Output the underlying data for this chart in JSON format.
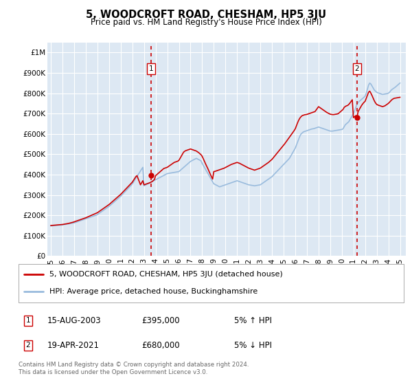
{
  "title": "5, WOODCROFT ROAD, CHESHAM, HP5 3JU",
  "subtitle": "Price paid vs. HM Land Registry's House Price Index (HPI)",
  "legend_line1": "5, WOODCROFT ROAD, CHESHAM, HP5 3JU (detached house)",
  "legend_line2": "HPI: Average price, detached house, Buckinghamshire",
  "transaction1_date": "15-AUG-2003",
  "transaction1_price": 395000,
  "transaction1_note": "5% ↑ HPI",
  "transaction2_date": "19-APR-2021",
  "transaction2_price": 680000,
  "transaction2_note": "5% ↓ HPI",
  "footer": "Contains HM Land Registry data © Crown copyright and database right 2024.\nThis data is licensed under the Open Government Licence v3.0.",
  "ylim": [
    0,
    1050000
  ],
  "yticks": [
    0,
    100000,
    200000,
    300000,
    400000,
    500000,
    600000,
    700000,
    800000,
    900000,
    1000000
  ],
  "ytick_labels": [
    "£0",
    "£100K",
    "£200K",
    "£300K",
    "£400K",
    "£500K",
    "£600K",
    "£700K",
    "£800K",
    "£900K",
    "£1M"
  ],
  "xlim_start": 1994.7,
  "xlim_end": 2025.5,
  "xtick_years": [
    1995,
    1996,
    1997,
    1998,
    1999,
    2000,
    2001,
    2002,
    2003,
    2004,
    2005,
    2006,
    2007,
    2008,
    2009,
    2010,
    2011,
    2012,
    2013,
    2014,
    2015,
    2016,
    2017,
    2018,
    2019,
    2020,
    2021,
    2022,
    2023,
    2024,
    2025
  ],
  "red_color": "#cc0000",
  "blue_color": "#99bbdd",
  "dashed_color": "#cc0000",
  "background_plot": "#dde8f3",
  "background_fig": "#ffffff",
  "grid_color": "#ffffff",
  "transaction1_x": 2003.62,
  "transaction2_x": 2021.29,
  "transaction1_y": 395000,
  "transaction2_y": 680000,
  "hpi_years": [
    1995.0,
    1995.1,
    1995.2,
    1995.3,
    1995.4,
    1995.5,
    1995.6,
    1995.7,
    1995.8,
    1995.9,
    1996.0,
    1996.1,
    1996.2,
    1996.3,
    1996.4,
    1996.5,
    1996.6,
    1996.7,
    1996.8,
    1996.9,
    1997.0,
    1997.1,
    1997.2,
    1997.3,
    1997.4,
    1997.5,
    1997.6,
    1997.7,
    1997.8,
    1997.9,
    1998.0,
    1998.1,
    1998.2,
    1998.3,
    1998.4,
    1998.5,
    1998.6,
    1998.7,
    1998.8,
    1998.9,
    1999.0,
    1999.1,
    1999.2,
    1999.3,
    1999.4,
    1999.5,
    1999.6,
    1999.7,
    1999.8,
    1999.9,
    2000.0,
    2000.1,
    2000.2,
    2000.3,
    2000.4,
    2000.5,
    2000.6,
    2000.7,
    2000.8,
    2000.9,
    2001.0,
    2001.1,
    2001.2,
    2001.3,
    2001.4,
    2001.5,
    2001.6,
    2001.7,
    2001.8,
    2001.9,
    2002.0,
    2002.1,
    2002.2,
    2002.3,
    2002.4,
    2002.5,
    2002.6,
    2002.7,
    2002.8,
    2002.9,
    2003.0,
    2003.1,
    2003.2,
    2003.3,
    2003.4,
    2003.5,
    2003.6,
    2003.7,
    2003.8,
    2003.9,
    2004.0,
    2004.1,
    2004.2,
    2004.3,
    2004.4,
    2004.5,
    2004.6,
    2004.7,
    2004.8,
    2004.9,
    2005.0,
    2005.1,
    2005.2,
    2005.3,
    2005.4,
    2005.5,
    2005.6,
    2005.7,
    2005.8,
    2005.9,
    2006.0,
    2006.1,
    2006.2,
    2006.3,
    2006.4,
    2006.5,
    2006.6,
    2006.7,
    2006.8,
    2006.9,
    2007.0,
    2007.1,
    2007.2,
    2007.3,
    2007.4,
    2007.5,
    2007.6,
    2007.7,
    2007.8,
    2007.9,
    2008.0,
    2008.1,
    2008.2,
    2008.3,
    2008.4,
    2008.5,
    2008.6,
    2008.7,
    2008.8,
    2008.9,
    2009.0,
    2009.1,
    2009.2,
    2009.3,
    2009.4,
    2009.5,
    2009.6,
    2009.7,
    2009.8,
    2009.9,
    2010.0,
    2010.1,
    2010.2,
    2010.3,
    2010.4,
    2010.5,
    2010.6,
    2010.7,
    2010.8,
    2010.9,
    2011.0,
    2011.1,
    2011.2,
    2011.3,
    2011.4,
    2011.5,
    2011.6,
    2011.7,
    2011.8,
    2011.9,
    2012.0,
    2012.1,
    2012.2,
    2012.3,
    2012.4,
    2012.5,
    2012.6,
    2012.7,
    2012.8,
    2012.9,
    2013.0,
    2013.1,
    2013.2,
    2013.3,
    2013.4,
    2013.5,
    2013.6,
    2013.7,
    2013.8,
    2013.9,
    2014.0,
    2014.1,
    2014.2,
    2014.3,
    2014.4,
    2014.5,
    2014.6,
    2014.7,
    2014.8,
    2014.9,
    2015.0,
    2015.1,
    2015.2,
    2015.3,
    2015.4,
    2015.5,
    2015.6,
    2015.7,
    2015.8,
    2015.9,
    2016.0,
    2016.1,
    2016.2,
    2016.3,
    2016.4,
    2016.5,
    2016.6,
    2016.7,
    2016.8,
    2016.9,
    2017.0,
    2017.1,
    2017.2,
    2017.3,
    2017.4,
    2017.5,
    2017.6,
    2017.7,
    2017.8,
    2017.9,
    2018.0,
    2018.1,
    2018.2,
    2018.3,
    2018.4,
    2018.5,
    2018.6,
    2018.7,
    2018.8,
    2018.9,
    2019.0,
    2019.1,
    2019.2,
    2019.3,
    2019.4,
    2019.5,
    2019.6,
    2019.7,
    2019.8,
    2019.9,
    2020.0,
    2020.1,
    2020.2,
    2020.3,
    2020.4,
    2020.5,
    2020.6,
    2020.7,
    2020.8,
    2020.9,
    2021.0,
    2021.1,
    2021.2,
    2021.3,
    2021.4,
    2021.5,
    2021.6,
    2021.7,
    2021.8,
    2021.9,
    2022.0,
    2022.1,
    2022.2,
    2022.3,
    2022.4,
    2022.5,
    2022.6,
    2022.7,
    2022.8,
    2022.9,
    2023.0,
    2023.1,
    2023.2,
    2023.3,
    2023.4,
    2023.5,
    2023.6,
    2023.7,
    2023.8,
    2023.9,
    2024.0,
    2024.1,
    2024.2,
    2024.3,
    2024.4,
    2024.5,
    2024.6,
    2024.7,
    2024.8,
    2024.9,
    2025.0
  ],
  "hpi_values": [
    148000,
    148500,
    149000,
    149500,
    150000,
    150500,
    151000,
    151500,
    152000,
    152500,
    153000,
    154000,
    155000,
    156000,
    157000,
    158000,
    159000,
    160000,
    161000,
    162000,
    163000,
    165000,
    167000,
    169000,
    171000,
    173000,
    175000,
    177000,
    179000,
    181000,
    183000,
    185000,
    187000,
    189000,
    191000,
    193000,
    195000,
    197000,
    199000,
    201000,
    204000,
    208000,
    212000,
    216000,
    220000,
    224000,
    228000,
    232000,
    236000,
    240000,
    244000,
    249000,
    254000,
    259000,
    264000,
    269000,
    274000,
    279000,
    284000,
    289000,
    294000,
    300000,
    306000,
    312000,
    318000,
    324000,
    330000,
    336000,
    342000,
    348000,
    355000,
    364000,
    373000,
    382000,
    391000,
    400000,
    409000,
    418000,
    427000,
    436000,
    345000,
    348000,
    351000,
    354000,
    357000,
    360000,
    363000,
    366000,
    369000,
    372000,
    375000,
    378000,
    381000,
    384000,
    387000,
    390000,
    393000,
    396000,
    399000,
    402000,
    405000,
    406000,
    407000,
    408000,
    409000,
    410000,
    411000,
    412000,
    413000,
    414000,
    415000,
    420000,
    425000,
    430000,
    435000,
    440000,
    445000,
    450000,
    455000,
    460000,
    465000,
    468000,
    471000,
    474000,
    477000,
    480000,
    477000,
    474000,
    471000,
    468000,
    455000,
    445000,
    435000,
    425000,
    415000,
    405000,
    395000,
    385000,
    375000,
    365000,
    355000,
    352000,
    349000,
    346000,
    343000,
    340000,
    342000,
    344000,
    346000,
    348000,
    350000,
    352000,
    354000,
    356000,
    358000,
    360000,
    362000,
    364000,
    366000,
    368000,
    370000,
    368000,
    366000,
    364000,
    362000,
    360000,
    358000,
    356000,
    354000,
    352000,
    350000,
    349000,
    348000,
    347000,
    346000,
    345000,
    346000,
    347000,
    348000,
    349000,
    350000,
    354000,
    358000,
    362000,
    366000,
    370000,
    374000,
    378000,
    382000,
    386000,
    390000,
    396000,
    402000,
    408000,
    414000,
    420000,
    426000,
    432000,
    438000,
    444000,
    450000,
    456000,
    462000,
    468000,
    474000,
    480000,
    490000,
    500000,
    510000,
    520000,
    530000,
    545000,
    560000,
    575000,
    590000,
    600000,
    605000,
    610000,
    612000,
    614000,
    616000,
    618000,
    620000,
    622000,
    624000,
    625000,
    626000,
    628000,
    630000,
    632000,
    634000,
    632000,
    630000,
    628000,
    626000,
    624000,
    622000,
    620000,
    618000,
    616000,
    614000,
    614000,
    614000,
    615000,
    616000,
    617000,
    618000,
    619000,
    620000,
    621000,
    622000,
    625000,
    635000,
    645000,
    650000,
    655000,
    660000,
    670000,
    680000,
    690000,
    700000,
    715000,
    730000,
    745000,
    755000,
    760000,
    765000,
    770000,
    775000,
    780000,
    785000,
    800000,
    820000,
    840000,
    850000,
    845000,
    835000,
    825000,
    815000,
    810000,
    805000,
    802000,
    800000,
    798000,
    796000,
    794000,
    795000,
    796000,
    797000,
    798000,
    800000,
    805000,
    812000,
    818000,
    822000,
    826000,
    830000,
    835000,
    840000,
    845000,
    850000
  ],
  "red_years": [
    1995.0,
    1995.1,
    1995.2,
    1995.3,
    1995.4,
    1995.5,
    1995.6,
    1995.7,
    1995.8,
    1995.9,
    1996.0,
    1996.1,
    1996.2,
    1996.3,
    1996.4,
    1996.5,
    1996.6,
    1996.7,
    1996.8,
    1996.9,
    1997.0,
    1997.1,
    1997.2,
    1997.3,
    1997.4,
    1997.5,
    1997.6,
    1997.7,
    1997.8,
    1997.9,
    1998.0,
    1998.1,
    1998.2,
    1998.3,
    1998.4,
    1998.5,
    1998.6,
    1998.7,
    1998.8,
    1998.9,
    1999.0,
    1999.1,
    1999.2,
    1999.3,
    1999.4,
    1999.5,
    1999.6,
    1999.7,
    1999.8,
    1999.9,
    2000.0,
    2000.1,
    2000.2,
    2000.3,
    2000.4,
    2000.5,
    2000.6,
    2000.7,
    2000.8,
    2000.9,
    2001.0,
    2001.1,
    2001.2,
    2001.3,
    2001.4,
    2001.5,
    2001.6,
    2001.7,
    2001.8,
    2001.9,
    2002.0,
    2002.1,
    2002.2,
    2002.3,
    2002.4,
    2002.5,
    2002.6,
    2002.7,
    2002.8,
    2002.9,
    2003.0,
    2003.1,
    2003.2,
    2003.3,
    2003.4,
    2003.5,
    2003.6,
    2003.7,
    2003.8,
    2003.9,
    2004.0,
    2004.1,
    2004.2,
    2004.3,
    2004.4,
    2004.5,
    2004.6,
    2004.7,
    2004.8,
    2004.9,
    2005.0,
    2005.1,
    2005.2,
    2005.3,
    2005.4,
    2005.5,
    2005.6,
    2005.7,
    2005.8,
    2005.9,
    2006.0,
    2006.1,
    2006.2,
    2006.3,
    2006.4,
    2006.5,
    2006.6,
    2006.7,
    2006.8,
    2006.9,
    2007.0,
    2007.1,
    2007.2,
    2007.3,
    2007.4,
    2007.5,
    2007.6,
    2007.7,
    2007.8,
    2007.9,
    2008.0,
    2008.1,
    2008.2,
    2008.3,
    2008.4,
    2008.5,
    2008.6,
    2008.7,
    2008.8,
    2008.9,
    2009.0,
    2009.1,
    2009.2,
    2009.3,
    2009.4,
    2009.5,
    2009.6,
    2009.7,
    2009.8,
    2009.9,
    2010.0,
    2010.1,
    2010.2,
    2010.3,
    2010.4,
    2010.5,
    2010.6,
    2010.7,
    2010.8,
    2010.9,
    2011.0,
    2011.1,
    2011.2,
    2011.3,
    2011.4,
    2011.5,
    2011.6,
    2011.7,
    2011.8,
    2011.9,
    2012.0,
    2012.1,
    2012.2,
    2012.3,
    2012.4,
    2012.5,
    2012.6,
    2012.7,
    2012.8,
    2012.9,
    2013.0,
    2013.1,
    2013.2,
    2013.3,
    2013.4,
    2013.5,
    2013.6,
    2013.7,
    2013.8,
    2013.9,
    2014.0,
    2014.1,
    2014.2,
    2014.3,
    2014.4,
    2014.5,
    2014.6,
    2014.7,
    2014.8,
    2014.9,
    2015.0,
    2015.1,
    2015.2,
    2015.3,
    2015.4,
    2015.5,
    2015.6,
    2015.7,
    2015.8,
    2015.9,
    2016.0,
    2016.1,
    2016.2,
    2016.3,
    2016.4,
    2016.5,
    2016.6,
    2016.7,
    2016.8,
    2016.9,
    2017.0,
    2017.1,
    2017.2,
    2017.3,
    2017.4,
    2017.5,
    2017.6,
    2017.7,
    2017.8,
    2017.9,
    2018.0,
    2018.1,
    2018.2,
    2018.3,
    2018.4,
    2018.5,
    2018.6,
    2018.7,
    2018.8,
    2018.9,
    2019.0,
    2019.1,
    2019.2,
    2019.3,
    2019.4,
    2019.5,
    2019.6,
    2019.7,
    2019.8,
    2019.9,
    2020.0,
    2020.1,
    2020.2,
    2020.3,
    2020.4,
    2020.5,
    2020.6,
    2020.7,
    2020.8,
    2020.9,
    2021.0,
    2021.1,
    2021.2,
    2021.3,
    2021.4,
    2021.5,
    2021.6,
    2021.7,
    2021.8,
    2021.9,
    2022.0,
    2022.1,
    2022.2,
    2022.3,
    2022.4,
    2022.5,
    2022.6,
    2022.7,
    2022.8,
    2022.9,
    2023.0,
    2023.1,
    2023.2,
    2023.3,
    2023.4,
    2023.5,
    2023.6,
    2023.7,
    2023.8,
    2023.9,
    2024.0,
    2024.1,
    2024.2,
    2024.3,
    2024.4,
    2024.5,
    2024.6,
    2024.7,
    2024.8,
    2024.9,
    2025.0
  ],
  "red_values": [
    150000,
    150500,
    151000,
    151500,
    152000,
    152500,
    153000,
    153500,
    154000,
    154500,
    155000,
    156000,
    157000,
    158000,
    159000,
    160000,
    161500,
    163000,
    164500,
    166000,
    168000,
    170000,
    172000,
    174000,
    176000,
    178000,
    180000,
    182000,
    184000,
    186000,
    188000,
    190500,
    193000,
    195500,
    198000,
    200500,
    203000,
    205500,
    208000,
    210500,
    213000,
    217000,
    221000,
    225000,
    229000,
    233000,
    237000,
    241000,
    245000,
    249000,
    253000,
    258000,
    263000,
    268000,
    273000,
    278000,
    283000,
    288000,
    293000,
    298000,
    303000,
    309000,
    315000,
    321000,
    327000,
    333000,
    339000,
    345000,
    351000,
    357000,
    363000,
    372000,
    381000,
    390000,
    395000,
    380000,
    365000,
    350000,
    360000,
    370000,
    350000,
    352000,
    354000,
    356000,
    358000,
    360000,
    363000,
    366000,
    371000,
    376000,
    395000,
    400000,
    405000,
    410000,
    415000,
    420000,
    425000,
    430000,
    432000,
    434000,
    436000,
    440000,
    444000,
    448000,
    452000,
    456000,
    460000,
    462000,
    464000,
    466000,
    470000,
    480000,
    490000,
    500000,
    510000,
    515000,
    518000,
    520000,
    522000,
    524000,
    526000,
    524000,
    522000,
    520000,
    518000,
    516000,
    512000,
    508000,
    503000,
    498000,
    490000,
    478000,
    465000,
    452000,
    440000,
    428000,
    415000,
    402000,
    390000,
    378000,
    415000,
    416000,
    418000,
    420000,
    422000,
    424000,
    426000,
    428000,
    430000,
    432000,
    435000,
    438000,
    441000,
    444000,
    447000,
    450000,
    452000,
    454000,
    456000,
    458000,
    460000,
    458000,
    456000,
    453000,
    450000,
    447000,
    444000,
    441000,
    438000,
    435000,
    432000,
    430000,
    428000,
    426000,
    424000,
    422000,
    424000,
    426000,
    428000,
    430000,
    432000,
    436000,
    440000,
    444000,
    448000,
    452000,
    456000,
    460000,
    465000,
    470000,
    475000,
    482000,
    489000,
    496000,
    503000,
    510000,
    517000,
    524000,
    531000,
    538000,
    545000,
    552000,
    560000,
    568000,
    576000,
    584000,
    592000,
    600000,
    608000,
    616000,
    625000,
    640000,
    655000,
    668000,
    678000,
    685000,
    690000,
    692000,
    694000,
    695000,
    696000,
    698000,
    700000,
    702000,
    704000,
    706000,
    708000,
    710000,
    718000,
    726000,
    734000,
    730000,
    726000,
    722000,
    718000,
    714000,
    710000,
    706000,
    703000,
    700000,
    697000,
    696000,
    695000,
    695000,
    696000,
    697000,
    698000,
    700000,
    705000,
    710000,
    715000,
    720000,
    730000,
    735000,
    738000,
    740000,
    745000,
    752000,
    760000,
    768000,
    680000,
    685000,
    690000,
    680000,
    710000,
    720000,
    730000,
    740000,
    748000,
    755000,
    760000,
    775000,
    790000,
    805000,
    810000,
    800000,
    788000,
    775000,
    762000,
    752000,
    745000,
    742000,
    740000,
    738000,
    736000,
    734000,
    736000,
    738000,
    742000,
    746000,
    750000,
    756000,
    762000,
    768000,
    772000,
    775000,
    776000,
    777000,
    778000,
    779000,
    780000
  ]
}
